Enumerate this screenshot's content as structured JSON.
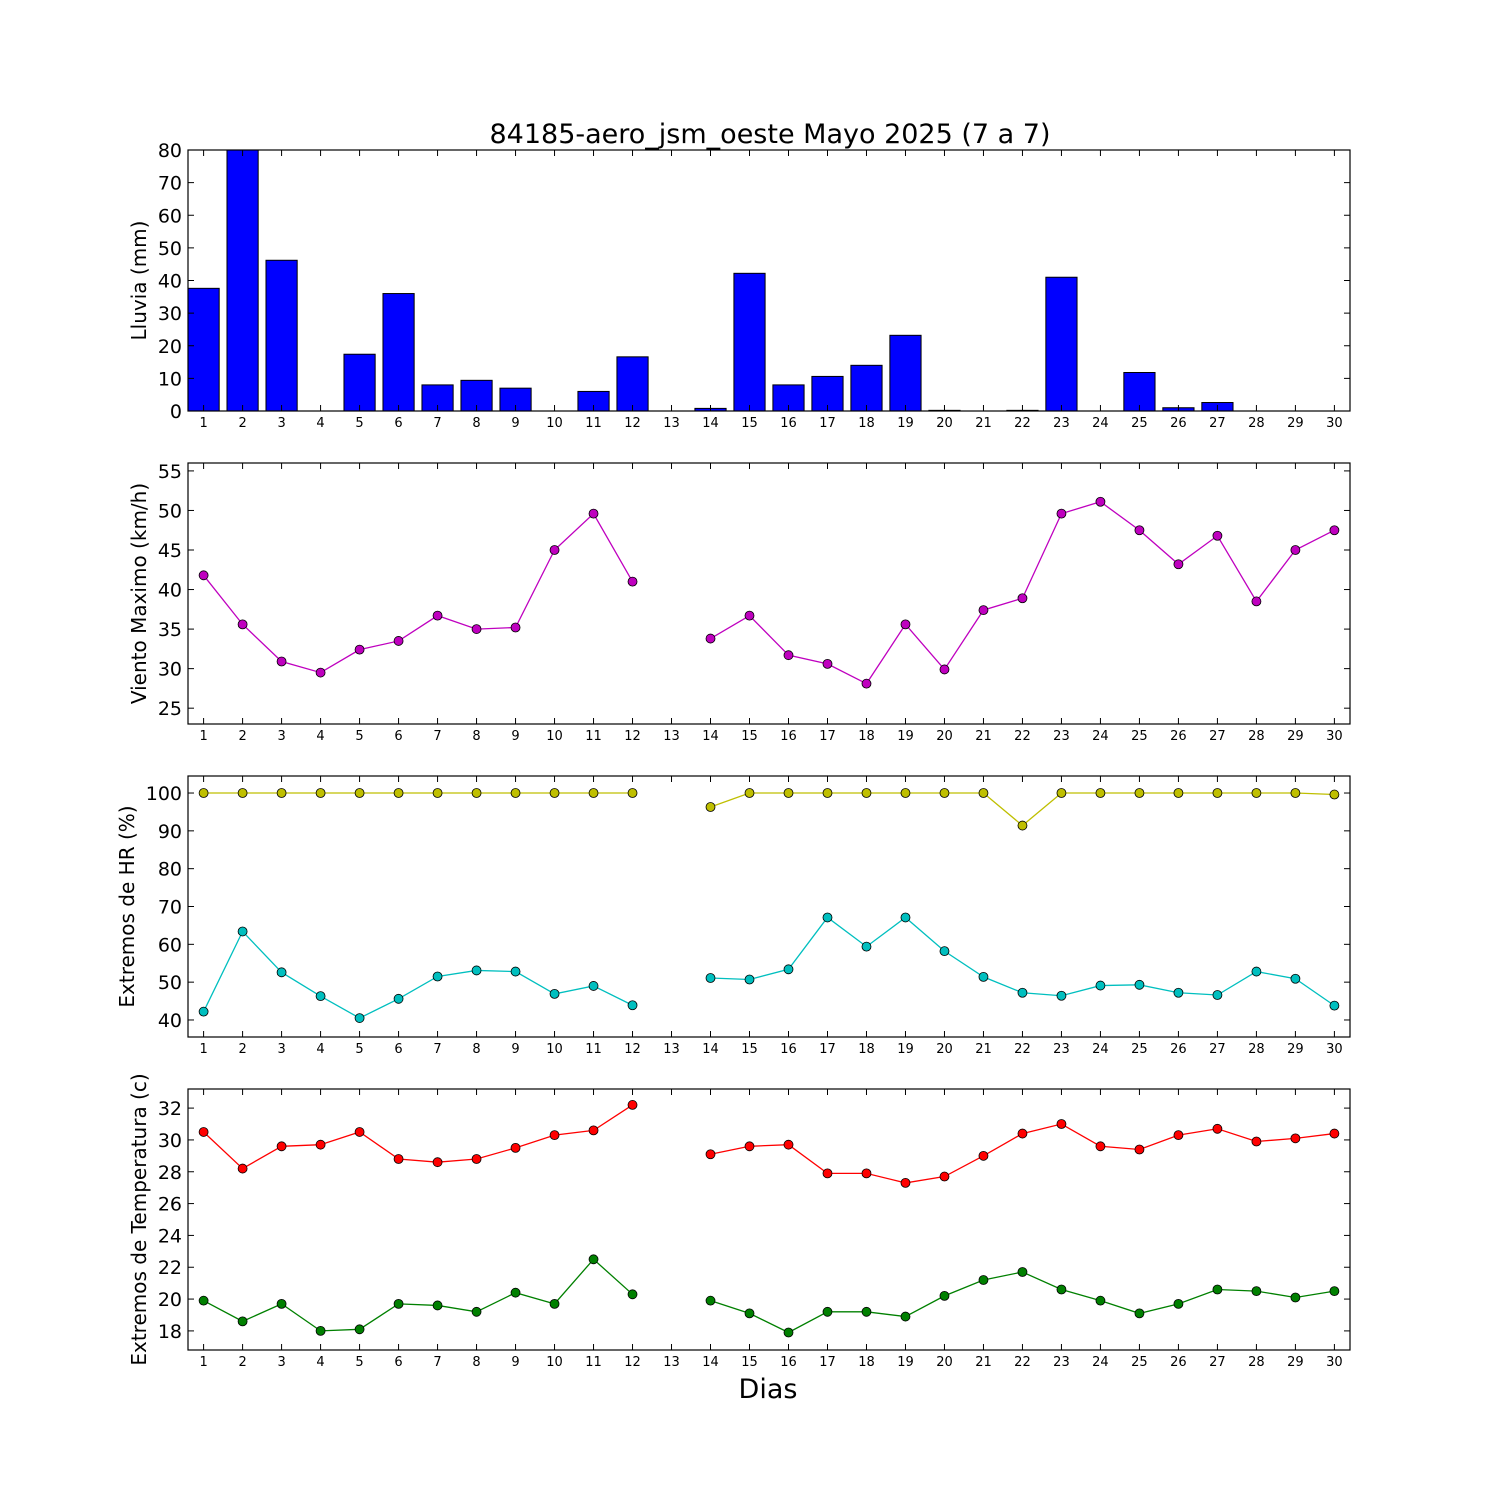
{
  "figure": {
    "title": "84185-aero_jsm_oeste Mayo 2025  (7 a 7)",
    "xlabel": "Dias"
  },
  "chart_data": [
    {
      "type": "bar",
      "ylabel": "Lluvia (mm)",
      "ylim": [
        0,
        80
      ],
      "yticks": [
        0,
        10,
        20,
        30,
        40,
        50,
        60,
        70,
        80
      ],
      "categories": [
        1,
        2,
        3,
        4,
        5,
        6,
        7,
        8,
        9,
        10,
        11,
        12,
        13,
        14,
        15,
        16,
        17,
        18,
        19,
        20,
        21,
        22,
        23,
        24,
        25,
        26,
        27,
        28,
        29,
        30
      ],
      "values": [
        37.6,
        80.0,
        46.2,
        0.0,
        17.4,
        36.0,
        8.0,
        9.4,
        7.0,
        0.0,
        6.0,
        16.6,
        0.0,
        0.8,
        42.2,
        8.0,
        10.6,
        14.0,
        23.2,
        0.2,
        0.0,
        0.2,
        41.0,
        0.0,
        11.8,
        1.0,
        2.6,
        0.0,
        0.0,
        0.0
      ],
      "color": "#0000ff",
      "grid": false
    },
    {
      "type": "line",
      "ylabel": "Viento Maximo (km/h)",
      "ylim": [
        23,
        56
      ],
      "yticks": [
        25,
        30,
        35,
        40,
        45,
        50,
        55
      ],
      "x": [
        1,
        2,
        3,
        4,
        5,
        6,
        7,
        8,
        9,
        10,
        11,
        12,
        13,
        14,
        15,
        16,
        17,
        18,
        19,
        20,
        21,
        22,
        23,
        24,
        25,
        26,
        27,
        28,
        29,
        30
      ],
      "series": [
        {
          "color": "#bf00bf",
          "values": [
            41.8,
            35.6,
            30.9,
            29.5,
            32.4,
            33.5,
            36.7,
            35.0,
            35.2,
            45.0,
            49.6,
            41.0,
            null,
            33.8,
            36.7,
            31.7,
            30.6,
            28.1,
            35.6,
            29.9,
            37.4,
            38.9,
            49.6,
            51.1,
            47.5,
            43.2,
            46.8,
            38.5,
            45.0,
            47.5
          ]
        }
      ],
      "grid": false
    },
    {
      "type": "line",
      "ylabel": "Extremos de HR (%)",
      "ylim": [
        35.5,
        104.5
      ],
      "yticks": [
        40,
        50,
        60,
        70,
        80,
        90,
        100
      ],
      "x": [
        1,
        2,
        3,
        4,
        5,
        6,
        7,
        8,
        9,
        10,
        11,
        12,
        13,
        14,
        15,
        16,
        17,
        18,
        19,
        20,
        21,
        22,
        23,
        24,
        25,
        26,
        27,
        28,
        29,
        30
      ],
      "series": [
        {
          "color": "#bfbf00",
          "values": [
            100,
            100,
            100,
            100,
            100,
            100,
            100,
            100,
            100,
            100,
            100,
            100,
            null,
            96.3,
            100,
            100,
            100,
            100,
            100,
            100,
            100,
            91.4,
            100,
            100,
            100,
            100,
            100,
            100,
            100,
            99.6
          ]
        },
        {
          "color": "#00bfbf",
          "values": [
            42.2,
            63.4,
            52.6,
            46.3,
            40.5,
            45.6,
            51.5,
            53.1,
            52.8,
            46.9,
            49.0,
            43.9,
            null,
            51.1,
            50.7,
            53.4,
            67.1,
            59.4,
            67.1,
            58.2,
            51.4,
            47.2,
            46.4,
            49.1,
            49.3,
            47.2,
            46.6,
            52.8,
            50.9,
            43.8
          ]
        }
      ],
      "grid": false
    },
    {
      "type": "line",
      "ylabel": "Extremos de Temperatura (c)",
      "ylim": [
        16.8,
        33.2
      ],
      "yticks": [
        18,
        20,
        22,
        24,
        26,
        28,
        30,
        32
      ],
      "x": [
        1,
        2,
        3,
        4,
        5,
        6,
        7,
        8,
        9,
        10,
        11,
        12,
        13,
        14,
        15,
        16,
        17,
        18,
        19,
        20,
        21,
        22,
        23,
        24,
        25,
        26,
        27,
        28,
        29,
        30
      ],
      "series": [
        {
          "color": "#ff0000",
          "values": [
            30.5,
            28.2,
            29.6,
            29.7,
            30.5,
            28.8,
            28.6,
            28.8,
            29.5,
            30.3,
            30.6,
            32.2,
            null,
            29.1,
            29.6,
            29.7,
            27.9,
            27.9,
            27.3,
            27.7,
            29.0,
            30.4,
            31.0,
            29.6,
            29.4,
            30.3,
            30.7,
            29.9,
            30.1,
            30.4
          ]
        },
        {
          "color": "#008000",
          "values": [
            19.9,
            18.6,
            19.7,
            18.0,
            18.1,
            19.7,
            19.6,
            19.2,
            20.4,
            19.7,
            22.5,
            20.3,
            null,
            19.9,
            19.1,
            17.9,
            19.2,
            19.2,
            18.9,
            20.2,
            21.2,
            21.7,
            20.6,
            19.9,
            19.1,
            19.7,
            20.6,
            20.5,
            20.1,
            20.5
          ]
        }
      ],
      "grid": false
    }
  ]
}
